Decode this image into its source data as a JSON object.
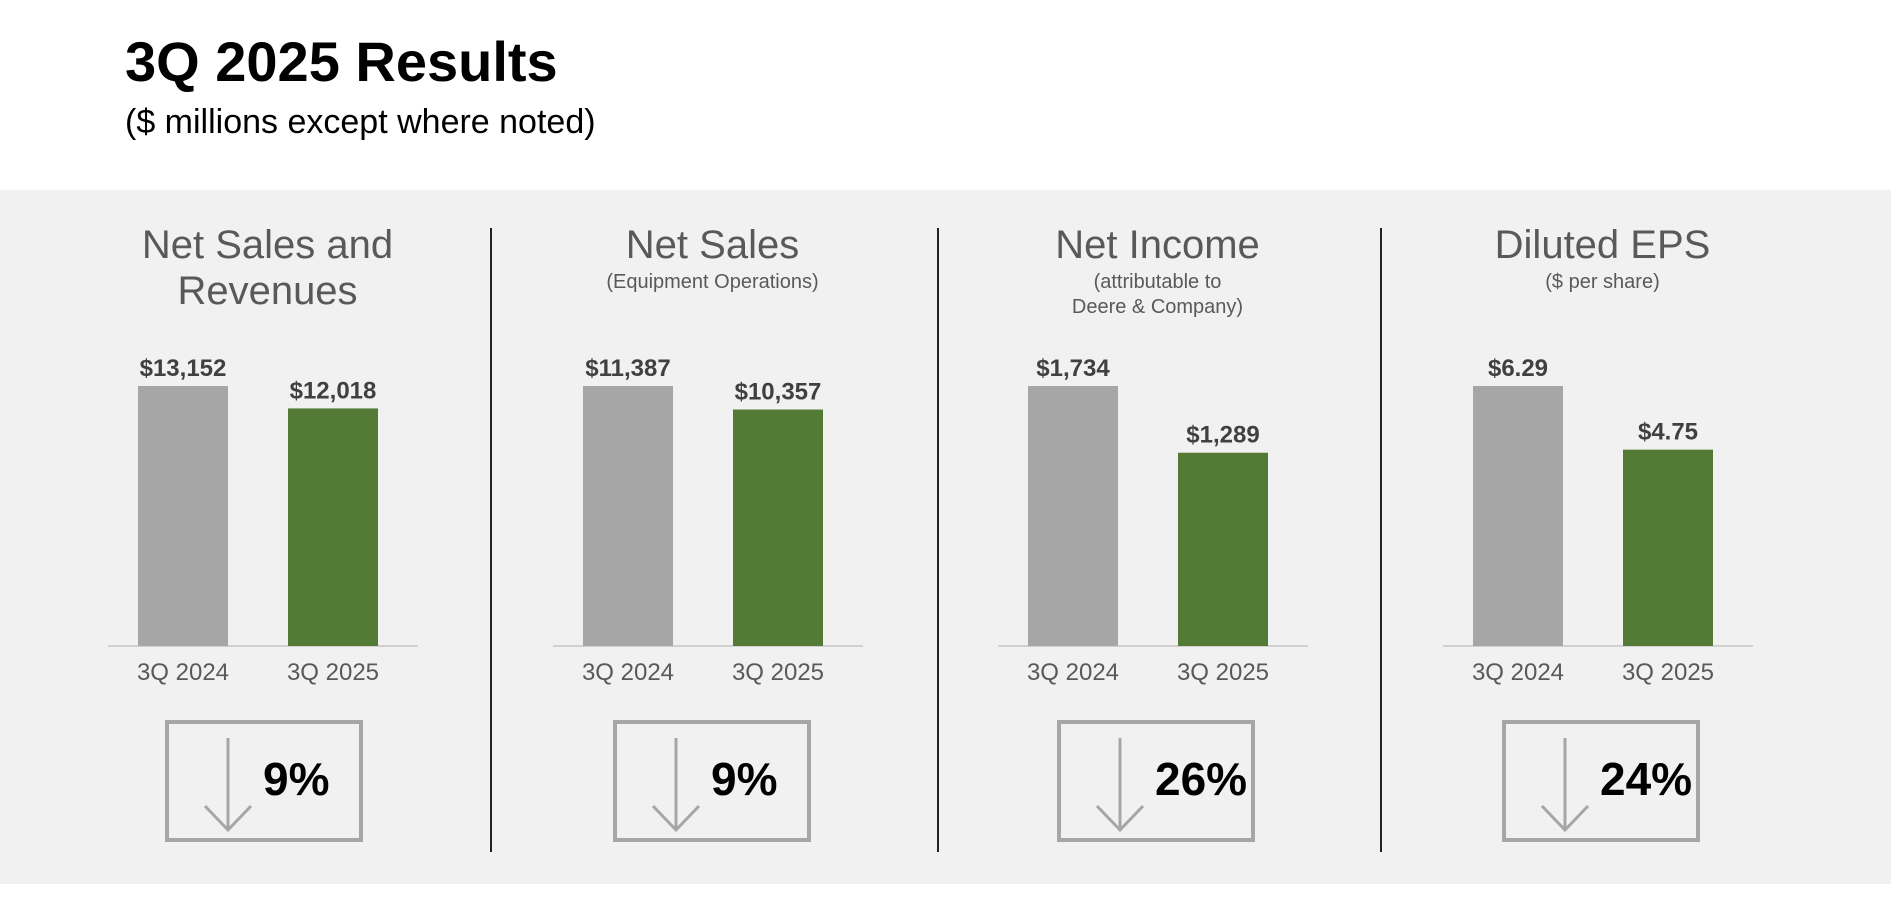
{
  "page": {
    "title": "3Q 2025 Results",
    "subtitle": "($ millions except where noted)"
  },
  "colors": {
    "prior_year_bar": "#a6a6a6",
    "current_year_bar": "#537b35",
    "panel_background": "#f1f1f1",
    "title_text": "#595959",
    "label_text": "#404040"
  },
  "chart_data": [
    {
      "type": "bar",
      "title": "Net Sales and\nRevenues",
      "subtitle": "",
      "categories": [
        "3Q 2024",
        "3Q 2025"
      ],
      "values": [
        13152,
        12018
      ],
      "value_labels": [
        "$13,152",
        "$12,018"
      ],
      "change": {
        "direction": "down",
        "label": "9%"
      }
    },
    {
      "type": "bar",
      "title": "Net Sales",
      "subtitle": "(Equipment Operations)",
      "categories": [
        "3Q 2024",
        "3Q 2025"
      ],
      "values": [
        11387,
        10357
      ],
      "value_labels": [
        "$11,387",
        "$10,357"
      ],
      "change": {
        "direction": "down",
        "label": "9%"
      }
    },
    {
      "type": "bar",
      "title": "Net Income",
      "subtitle": "(attributable to\nDeere & Company)",
      "categories": [
        "3Q 2024",
        "3Q 2025"
      ],
      "values": [
        1734,
        1289
      ],
      "value_labels": [
        "$1,734",
        "$1,289"
      ],
      "change": {
        "direction": "down",
        "label": "26%"
      }
    },
    {
      "type": "bar",
      "title": "Diluted EPS",
      "subtitle": "($ per share)",
      "categories": [
        "3Q 2024",
        "3Q 2025"
      ],
      "values": [
        6.29,
        4.75
      ],
      "value_labels": [
        "$6.29",
        "$4.75"
      ],
      "change": {
        "direction": "down",
        "label": "24%"
      }
    }
  ]
}
